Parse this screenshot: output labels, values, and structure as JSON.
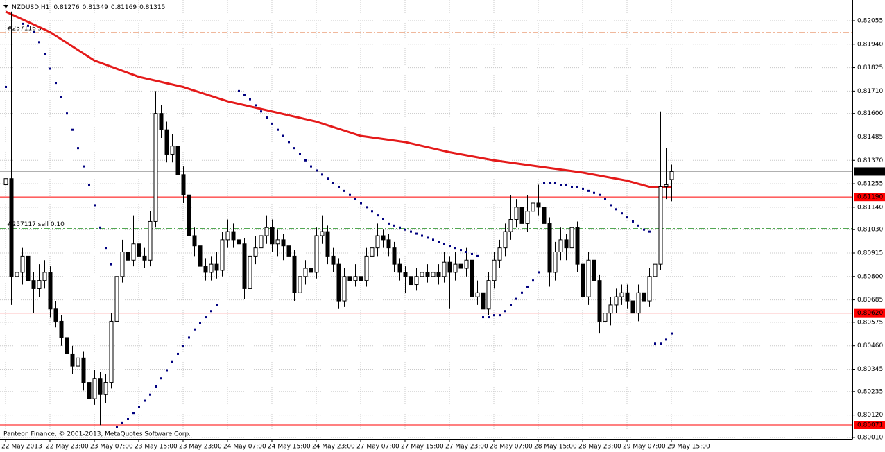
{
  "chart_data": {
    "type": "candlestick",
    "symbol": "NZDUSD,H1",
    "footer": "Panteon Finance, © 2001-2013, MetaQuotes Software Corp.",
    "categories": [
      "22 May 2013",
      null,
      null,
      null,
      null,
      null,
      null,
      null,
      "22 May 23:00",
      null,
      null,
      null,
      null,
      null,
      null,
      null,
      "23 May 07:00",
      null,
      null,
      null,
      null,
      null,
      null,
      null,
      "23 May 15:00",
      null,
      null,
      null,
      null,
      null,
      null,
      null,
      "23 May 23:00",
      null,
      null,
      null,
      null,
      null,
      null,
      null,
      "24 May 07:00",
      null,
      null,
      null,
      null,
      null,
      null,
      null,
      "24 May 15:00",
      null,
      null,
      null,
      null,
      null,
      null,
      null,
      "24 May 23:00",
      null,
      null,
      null,
      null,
      null,
      null,
      null,
      "27 May 07:00",
      null,
      null,
      null,
      null,
      null,
      null,
      null,
      "27 May 15:00",
      null,
      null,
      null,
      null,
      null,
      null,
      null,
      "27 May 23:00",
      null,
      null,
      null,
      null,
      null,
      null,
      null,
      "28 May 07:00",
      null,
      null,
      null,
      null,
      null,
      null,
      null,
      "28 May 15:00",
      null,
      null,
      null,
      null,
      null,
      null,
      null,
      "28 May 23:00",
      null,
      null,
      null,
      null,
      null,
      null,
      null,
      "29 May 07:00",
      null,
      null,
      null,
      null,
      null,
      null,
      null,
      "29 May 15:00"
    ],
    "open": [
      0.8125,
      0.8128,
      0.808,
      0.8082,
      0.809,
      0.8078,
      0.8074,
      0.8078,
      0.8082,
      0.8064,
      0.8058,
      0.805,
      0.8042,
      0.8036,
      0.804,
      0.8028,
      0.802,
      0.803,
      0.8022,
      0.8028,
      0.8058,
      0.808,
      0.8092,
      0.8088,
      0.8096,
      0.809,
      0.8088,
      0.8107,
      0.816,
      0.8152,
      0.814,
      0.8144,
      0.813,
      0.812,
      0.81,
      0.8095,
      0.8085,
      0.8082,
      0.8086,
      0.8083,
      0.8098,
      0.8102,
      0.8098,
      0.8096,
      0.8074,
      0.809,
      0.8094,
      0.81,
      0.8104,
      0.8096,
      0.8098,
      0.8095,
      0.809,
      0.8072,
      0.808,
      0.8084,
      0.8082,
      0.81,
      0.8102,
      0.809,
      0.8086,
      0.8068,
      0.808,
      0.8078,
      0.808,
      0.8078,
      0.809,
      0.8094,
      0.81,
      0.8098,
      0.8094,
      0.8086,
      0.8082,
      0.808,
      0.8076,
      0.808,
      0.8082,
      0.808,
      0.8082,
      0.808,
      0.8087,
      0.8082,
      0.8086,
      0.8084,
      0.8088,
      0.807,
      0.8072,
      0.8064,
      0.8078,
      0.8088,
      0.8094,
      0.8102,
      0.8108,
      0.8114,
      0.8106,
      0.8112,
      0.8116,
      0.8114,
      0.8106,
      0.8082,
      0.8092,
      0.8098,
      0.8094,
      0.8104,
      0.8086,
      0.807,
      0.8088,
      0.8078,
      0.8058,
      0.8062,
      0.8066,
      0.807,
      0.8072,
      0.8068,
      0.8062,
      0.8072,
      0.8068,
      0.808,
      0.8086,
      0.8124,
      0.81276
    ],
    "high": [
      0.8133,
      0.821,
      0.8088,
      0.8094,
      0.8093,
      0.8082,
      0.8086,
      0.8088,
      0.8085,
      0.8068,
      0.8061,
      0.8054,
      0.8046,
      0.8044,
      0.8043,
      0.8032,
      0.8034,
      0.8033,
      0.8032,
      0.8062,
      0.8084,
      0.8098,
      0.8104,
      0.811,
      0.81,
      0.8094,
      0.8112,
      0.8171,
      0.8164,
      0.8156,
      0.815,
      0.8147,
      0.8134,
      0.8123,
      0.8104,
      0.8098,
      0.8089,
      0.809,
      0.8092,
      0.8102,
      0.8108,
      0.8106,
      0.8102,
      0.8099,
      0.8094,
      0.81,
      0.8106,
      0.811,
      0.8108,
      0.8103,
      0.8101,
      0.8098,
      0.8093,
      0.8084,
      0.8088,
      0.8087,
      0.8104,
      0.811,
      0.8105,
      0.8094,
      0.8089,
      0.8084,
      0.8083,
      0.8086,
      0.8083,
      0.8094,
      0.8098,
      0.8106,
      0.8103,
      0.8101,
      0.8097,
      0.8089,
      0.8085,
      0.8083,
      0.8084,
      0.809,
      0.8086,
      0.8085,
      0.8086,
      0.8092,
      0.809,
      0.8092,
      0.809,
      0.8094,
      0.8091,
      0.8078,
      0.8076,
      0.8082,
      0.8092,
      0.8098,
      0.8106,
      0.812,
      0.8118,
      0.8117,
      0.812,
      0.8124,
      0.8125,
      0.8117,
      0.8109,
      0.8097,
      0.8104,
      0.8101,
      0.8108,
      0.8107,
      0.8089,
      0.8092,
      0.8091,
      0.8081,
      0.8068,
      0.807,
      0.8074,
      0.8076,
      0.8076,
      0.8071,
      0.8076,
      0.8076,
      0.8084,
      0.8092,
      0.8161,
      0.8143,
      0.81349
    ],
    "low": [
      0.8118,
      0.8066,
      0.8068,
      0.8076,
      0.8072,
      0.8062,
      0.807,
      0.8074,
      0.806,
      0.8055,
      0.8046,
      0.8038,
      0.8032,
      0.8033,
      0.8024,
      0.8016,
      0.8017,
      0.8007,
      0.8018,
      0.8025,
      0.8055,
      0.8077,
      0.8085,
      0.8085,
      0.8086,
      0.8084,
      0.8085,
      0.8104,
      0.8148,
      0.8136,
      0.8136,
      0.8126,
      0.8116,
      0.8096,
      0.809,
      0.8081,
      0.8078,
      0.8078,
      0.8079,
      0.808,
      0.8094,
      0.8094,
      0.8086,
      0.8069,
      0.8071,
      0.8086,
      0.809,
      0.8096,
      0.8092,
      0.809,
      0.8088,
      0.8084,
      0.8068,
      0.8069,
      0.8076,
      0.8062,
      0.8079,
      0.8096,
      0.8086,
      0.8082,
      0.8064,
      0.8065,
      0.8074,
      0.8075,
      0.8074,
      0.8075,
      0.8086,
      0.809,
      0.8094,
      0.809,
      0.8082,
      0.8078,
      0.8072,
      0.8072,
      0.8073,
      0.8077,
      0.8077,
      0.8077,
      0.8076,
      0.8077,
      0.8064,
      0.8078,
      0.808,
      0.808,
      0.8066,
      0.8066,
      0.806,
      0.8061,
      0.8074,
      0.8084,
      0.809,
      0.8098,
      0.8104,
      0.8102,
      0.8102,
      0.8108,
      0.811,
      0.8102,
      0.8075,
      0.8078,
      0.8088,
      0.8088,
      0.809,
      0.8082,
      0.8066,
      0.8066,
      0.8074,
      0.8052,
      0.8054,
      0.8056,
      0.8062,
      0.8066,
      0.8064,
      0.8054,
      0.8058,
      0.8064,
      0.8065,
      0.8077,
      0.8083,
      0.8118,
      0.81169
    ],
    "close": [
      0.8128,
      0.808,
      0.8082,
      0.809,
      0.8078,
      0.8074,
      0.8078,
      0.8082,
      0.8064,
      0.8058,
      0.805,
      0.8042,
      0.8036,
      0.804,
      0.8028,
      0.802,
      0.803,
      0.8022,
      0.8028,
      0.8058,
      0.808,
      0.8092,
      0.8088,
      0.8096,
      0.809,
      0.8088,
      0.8107,
      0.816,
      0.8152,
      0.814,
      0.8144,
      0.813,
      0.812,
      0.81,
      0.8095,
      0.8085,
      0.8082,
      0.8086,
      0.8083,
      0.8098,
      0.8102,
      0.8098,
      0.8096,
      0.8074,
      0.809,
      0.8094,
      0.81,
      0.8104,
      0.8096,
      0.8098,
      0.8095,
      0.809,
      0.8072,
      0.808,
      0.8084,
      0.8082,
      0.81,
      0.8102,
      0.809,
      0.8086,
      0.8068,
      0.808,
      0.8078,
      0.808,
      0.8078,
      0.809,
      0.8094,
      0.81,
      0.8098,
      0.8094,
      0.8086,
      0.8082,
      0.808,
      0.8076,
      0.808,
      0.8082,
      0.808,
      0.8082,
      0.808,
      0.8087,
      0.8082,
      0.8086,
      0.8084,
      0.8088,
      0.807,
      0.8072,
      0.8064,
      0.8078,
      0.8088,
      0.8094,
      0.8102,
      0.8108,
      0.8114,
      0.8106,
      0.8112,
      0.8116,
      0.8114,
      0.8106,
      0.8082,
      0.8092,
      0.8098,
      0.8094,
      0.8104,
      0.8086,
      0.807,
      0.8088,
      0.8078,
      0.8058,
      0.8062,
      0.8066,
      0.807,
      0.8072,
      0.8068,
      0.8062,
      0.8072,
      0.8068,
      0.808,
      0.8086,
      0.8124,
      0.8125,
      0.81315
    ],
    "sar": {
      "color": "#000080",
      "values": [
        0.8173,
        null,
        null,
        0.8204,
        0.8203,
        0.82,
        0.8195,
        0.8189,
        0.8182,
        0.8175,
        0.8168,
        0.816,
        0.8152,
        0.8143,
        0.8134,
        0.8125,
        0.8115,
        0.8104,
        0.8094,
        0.8086,
        0.8006,
        0.8008,
        0.801,
        0.8013,
        0.8016,
        0.8019,
        0.8022,
        0.8026,
        0.803,
        0.8034,
        0.8038,
        0.8042,
        0.8046,
        0.805,
        0.8054,
        0.8057,
        0.806,
        0.8063,
        0.8066,
        null,
        null,
        null,
        0.8171,
        0.8169,
        0.8167,
        0.8164,
        0.8161,
        0.8158,
        0.8155,
        0.8152,
        0.8149,
        0.8146,
        0.8143,
        0.814,
        0.8137,
        0.8134,
        0.8132,
        0.813,
        0.8128,
        0.8126,
        0.8124,
        0.8122,
        0.812,
        0.8118,
        0.8116,
        0.8114,
        0.8112,
        0.811,
        0.8108,
        0.8106,
        0.8105,
        0.8104,
        0.8103,
        0.8102,
        0.8101,
        0.81,
        0.8099,
        0.8098,
        0.8097,
        0.8096,
        0.8095,
        0.8094,
        0.8093,
        0.8092,
        0.8091,
        0.809,
        0.806,
        0.806,
        0.8061,
        0.8061,
        0.8063,
        0.8066,
        0.8069,
        0.8072,
        0.8075,
        0.8078,
        0.8082,
        0.8126,
        0.8126,
        0.8126,
        0.8125,
        0.8125,
        0.8124,
        0.8124,
        0.8123,
        0.8122,
        0.8121,
        0.812,
        0.8118,
        0.8115,
        0.8113,
        0.8111,
        0.8109,
        0.8107,
        0.8105,
        0.8103,
        0.8102,
        0.8047,
        0.8047,
        0.8049,
        0.8052
      ]
    },
    "ma": {
      "color": "#e41a1a",
      "x": [
        0,
        8,
        16,
        24,
        32,
        40,
        48,
        56,
        64,
        72,
        80,
        88,
        96,
        104,
        112,
        116,
        120
      ],
      "values": [
        0.821,
        0.82,
        0.8186,
        0.8178,
        0.8173,
        0.8166,
        0.8161,
        0.8156,
        0.8149,
        0.8146,
        0.8141,
        0.8137,
        0.8134,
        0.8131,
        0.8127,
        0.8124,
        0.8124
      ]
    },
    "levels": [
      {
        "value": 0.8119,
        "label": "0.81190",
        "color": "#ff0000"
      },
      {
        "value": 0.8062,
        "label": "0.80620",
        "color": "#ff0000"
      },
      {
        "value": 0.80071,
        "label": "0.80071",
        "color": "#ff0000"
      }
    ],
    "orders": [
      {
        "value": 0.81997,
        "text": "#257116 s",
        "color": "#e0703a",
        "style": "dashdot"
      },
      {
        "value": 0.81035,
        "text": "#257117 sell 0.10",
        "color": "#1a8a1a",
        "style": "dashdot"
      }
    ],
    "ylim": [
      0.80003,
      0.82157
    ],
    "yticks": [
      {
        "value": 0.82055,
        "label": "0.82055"
      },
      {
        "value": 0.8194,
        "label": "0.81940"
      },
      {
        "value": 0.81825,
        "label": "0.81825"
      },
      {
        "value": 0.8171,
        "label": "0.81710"
      },
      {
        "value": 0.816,
        "label": "0.81600"
      },
      {
        "value": 0.81485,
        "label": "0.81485"
      },
      {
        "value": 0.8137,
        "label": "0.81370"
      },
      {
        "value": 0.81255,
        "label": "0.81255"
      },
      {
        "value": 0.8114,
        "label": "0.81140"
      },
      {
        "value": 0.8103,
        "label": "0.81030"
      },
      {
        "value": 0.80915,
        "label": "0.80915"
      },
      {
        "value": 0.808,
        "label": "0.80800"
      },
      {
        "value": 0.80685,
        "label": "0.80685"
      },
      {
        "value": 0.80575,
        "label": "0.80575"
      },
      {
        "value": 0.8046,
        "label": "0.80460"
      },
      {
        "value": 0.80345,
        "label": "0.80345"
      },
      {
        "value": 0.80235,
        "label": "0.80235"
      },
      {
        "value": 0.8012,
        "label": "0.80120"
      },
      {
        "value": 0.8001,
        "label": "0.80010"
      }
    ],
    "grid": true
  }
}
